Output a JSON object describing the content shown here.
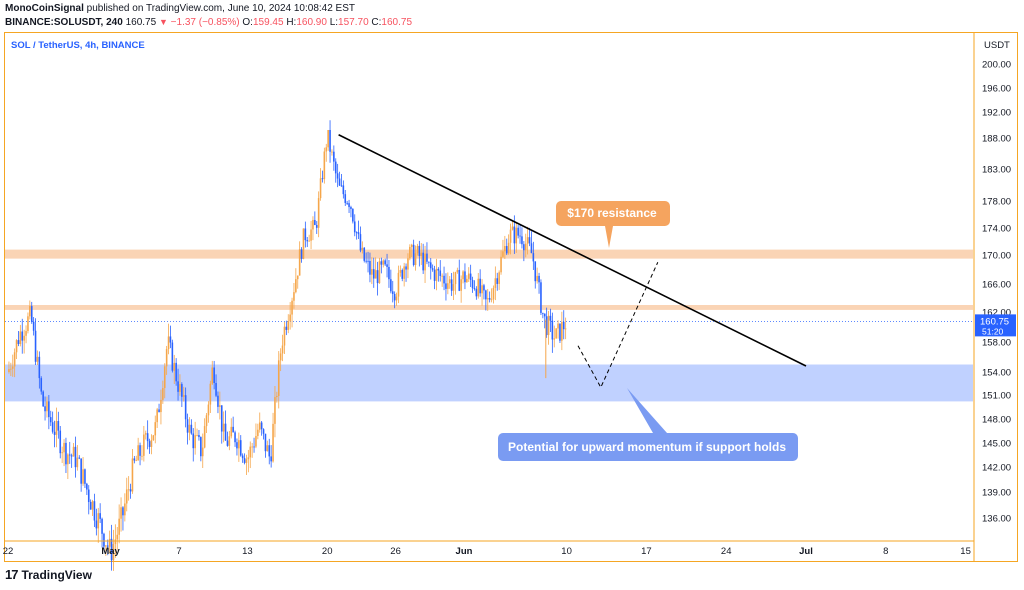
{
  "header": {
    "author": "MonoCoinSignal",
    "published_text": "published on TradingView.com, June 10, 2024 10:08:42 EST",
    "symbol": "BINANCE:SOLUSDT, 240",
    "last": "160.75",
    "change": "−1.37 (−0.85%)",
    "o_label": "O:",
    "o_value": "159.45",
    "h_label": "H:",
    "h_value": "160.90",
    "l_label": "L:",
    "l_value": "157.70",
    "c_label": "C:",
    "c_value": "160.75"
  },
  "footer": {
    "brand": "TradingView",
    "mark": "17"
  },
  "colors": {
    "up": "#f5a64a",
    "down": "#2962ff",
    "frame": "#f5a623",
    "resistance_zone": "#f9c9a3",
    "support_zone": "#b5c9ff",
    "orange_callout": "#f5a45f",
    "blue_callout": "#7a9bf2"
  },
  "chart_data": {
    "type": "candlestick",
    "title": "SOL / TetherUS, 4h, BINANCE",
    "currency": "USDT",
    "y_ticks": [
      200,
      196,
      192,
      188,
      183,
      178,
      174,
      170,
      166,
      162,
      158,
      154,
      151,
      148,
      145,
      142,
      139,
      136
    ],
    "y_tick_labels": [
      "200.00",
      "196.00",
      "192.00",
      "188.00",
      "183.00",
      "178.00",
      "174.00",
      "170.00",
      "166.00",
      "162.00",
      "158.00",
      "154.00",
      "151.00",
      "148.00",
      "145.00",
      "142.00",
      "139.00",
      "136.00"
    ],
    "x_ticks": [
      {
        "label": "22",
        "date": "2024-04-22",
        "bold": false
      },
      {
        "label": "May",
        "date": "2024-05-01",
        "bold": true
      },
      {
        "label": "7",
        "date": "2024-05-07",
        "bold": false
      },
      {
        "label": "13",
        "date": "2024-05-13",
        "bold": false
      },
      {
        "label": "20",
        "date": "2024-05-20",
        "bold": false
      },
      {
        "label": "26",
        "date": "2024-05-26",
        "bold": false
      },
      {
        "label": "Jun",
        "date": "2024-06-01",
        "bold": true
      },
      {
        "label": "10",
        "date": "2024-06-10",
        "bold": false
      },
      {
        "label": "17",
        "date": "2024-06-17",
        "bold": false
      },
      {
        "label": "24",
        "date": "2024-06-24",
        "bold": false
      },
      {
        "label": "Jul",
        "date": "2024-07-01",
        "bold": true
      },
      {
        "label": "8",
        "date": "2024-07-08",
        "bold": false
      },
      {
        "label": "15",
        "date": "2024-07-15",
        "bold": false
      }
    ],
    "price_path": [
      [
        "2024-04-22",
        154.0
      ],
      [
        "2024-04-23",
        159.0
      ],
      [
        "2024-04-24",
        161.5
      ],
      [
        "2024-04-25",
        150.0
      ],
      [
        "2024-04-26",
        147.0
      ],
      [
        "2024-04-27",
        144.0
      ],
      [
        "2024-04-28",
        143.0
      ],
      [
        "2024-04-29",
        139.0
      ],
      [
        "2024-04-30",
        135.5
      ],
      [
        "2024-05-01",
        132.0
      ],
      [
        "2024-05-02",
        136.0
      ],
      [
        "2024-05-03",
        142.0
      ],
      [
        "2024-05-04",
        145.0
      ],
      [
        "2024-05-05",
        147.0
      ],
      [
        "2024-05-06",
        158.0
      ],
      [
        "2024-05-07",
        152.0
      ],
      [
        "2024-05-08",
        146.0
      ],
      [
        "2024-05-09",
        144.0
      ],
      [
        "2024-05-10",
        155.0
      ],
      [
        "2024-05-11",
        145.0
      ],
      [
        "2024-05-12",
        146.0
      ],
      [
        "2024-05-13",
        143.0
      ],
      [
        "2024-05-14",
        147.0
      ],
      [
        "2024-05-15",
        143.0
      ],
      [
        "2024-05-16",
        158.0
      ],
      [
        "2024-05-17",
        165.0
      ],
      [
        "2024-05-18",
        173.0
      ],
      [
        "2024-05-19",
        174.0
      ],
      [
        "2024-05-20",
        188.5
      ],
      [
        "2024-05-21",
        180.0
      ],
      [
        "2024-05-22",
        178.0
      ],
      [
        "2024-05-23",
        170.0
      ],
      [
        "2024-05-24",
        167.0
      ],
      [
        "2024-05-25",
        168.0
      ],
      [
        "2024-05-26",
        165.0
      ],
      [
        "2024-05-27",
        170.0
      ],
      [
        "2024-05-28",
        170.0
      ],
      [
        "2024-05-29",
        168.0
      ],
      [
        "2024-05-30",
        167.0
      ],
      [
        "2024-05-31",
        166.0
      ],
      [
        "2024-06-01",
        167.0
      ],
      [
        "2024-06-02",
        166.0
      ],
      [
        "2024-06-03",
        163.0
      ],
      [
        "2024-06-04",
        168.0
      ],
      [
        "2024-06-05",
        173.0
      ],
      [
        "2024-06-06",
        173.0
      ],
      [
        "2024-06-07",
        170.0
      ],
      [
        "2024-06-08",
        161.0
      ],
      [
        "2024-06-09",
        158.5
      ],
      [
        "2024-06-10",
        160.75
      ]
    ],
    "current_price": 160.75,
    "current_price_label": "160.75",
    "countdown": "51:20",
    "zones": [
      {
        "name": "resistance",
        "from": 169.5,
        "to": 170.8
      },
      {
        "name": "minor-resistance",
        "from": 162.3,
        "to": 163.0
      },
      {
        "name": "support",
        "from": 150.2,
        "to": 155.0
      }
    ],
    "trendline": {
      "from": [
        "2024-05-21",
        188.5
      ],
      "to": [
        "2024-07-01",
        154.8
      ]
    },
    "projection": [
      [
        "2024-06-11",
        157.5
      ],
      [
        "2024-06-13",
        152.0
      ],
      [
        "2024-06-18",
        169.0
      ]
    ],
    "annotations": [
      {
        "text": "$170 resistance",
        "style": "orange"
      },
      {
        "text": "Potential for upward momentum if support holds",
        "style": "blue"
      }
    ]
  }
}
